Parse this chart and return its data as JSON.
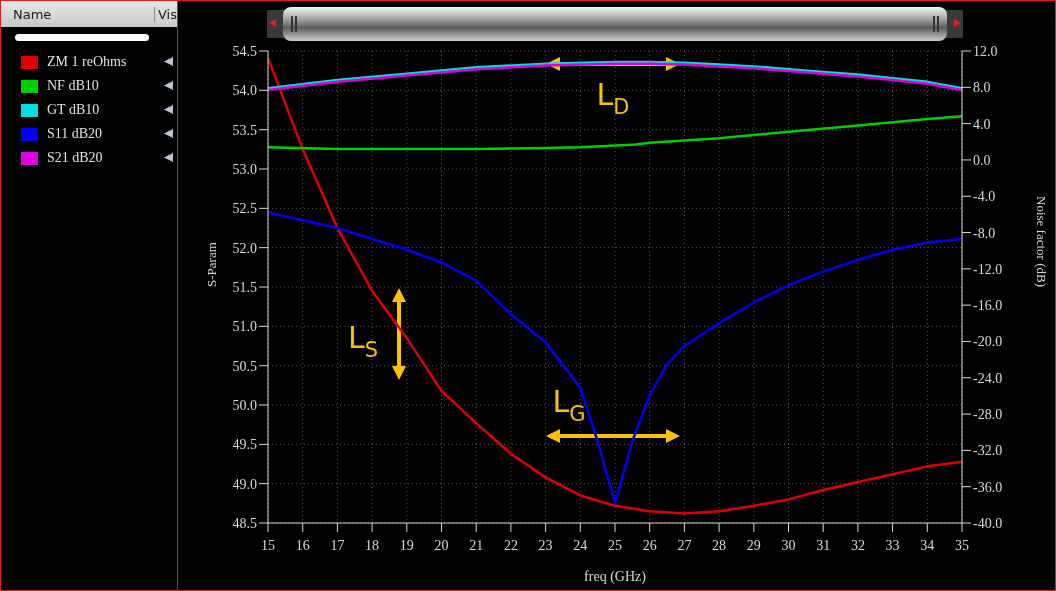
{
  "chart_data": {
    "type": "line",
    "xlabel": "freq (GHz)",
    "ylabel": "S-Param",
    "y2label": "Noise factor (dB)",
    "legend_title": "Name",
    "legend": "left",
    "grid": true,
    "marker": "none",
    "line_style": "solid",
    "xlim": [
      15,
      35
    ],
    "xticks": [
      15,
      16,
      17,
      18,
      19,
      20,
      21,
      22,
      23,
      24,
      25,
      26,
      27,
      28,
      29,
      30,
      31,
      32,
      33,
      34,
      35
    ],
    "ylim": [
      48.5,
      54.5
    ],
    "yticks": [
      48.5,
      {
        "value": 49,
        "label": "49.0"
      },
      49.5,
      {
        "value": 50,
        "label": "50.0"
      },
      50.5,
      {
        "value": 51,
        "label": "51.0"
      },
      51.5,
      {
        "value": 52,
        "label": "52.0"
      },
      52.5,
      {
        "value": 53,
        "label": "53.0"
      },
      53.5,
      {
        "value": 54,
        "label": "54.0"
      },
      54.5
    ],
    "y2lim": [
      -40,
      12
    ],
    "y2ticks": [
      {
        "value": -40,
        "label": "-40.0"
      },
      {
        "value": -36,
        "label": "-36.0"
      },
      {
        "value": -32,
        "label": "-32.0"
      },
      {
        "value": -28,
        "label": "-28.0"
      },
      {
        "value": -24,
        "label": "-24.0"
      },
      {
        "value": -20,
        "label": "-20.0"
      },
      {
        "value": -16,
        "label": "-16.0"
      },
      {
        "value": -12,
        "label": "-12.0"
      },
      {
        "value": -8,
        "label": "-8.0"
      },
      {
        "value": -4,
        "label": "-4.0"
      },
      {
        "value": 0,
        "label": "0.0"
      },
      {
        "value": 4,
        "label": "4.0"
      },
      {
        "value": 8,
        "label": "8.0"
      },
      {
        "value": 12,
        "label": "12.0"
      }
    ],
    "series": [
      {
        "name": "ZM 1 reOhms",
        "color": "#e00000",
        "x": [
          15,
          16,
          17,
          18,
          19,
          20,
          21,
          22,
          23,
          24,
          25,
          26,
          27,
          28,
          29,
          30,
          31,
          32,
          33,
          34,
          35
        ],
        "values": [
          54.41,
          53.25,
          52.25,
          51.45,
          50.85,
          50.18,
          49.77,
          49.38,
          49.08,
          48.85,
          48.72,
          48.65,
          48.62,
          48.65,
          48.72,
          48.8,
          48.92,
          49.02,
          49.12,
          49.22,
          49.28
        ]
      },
      {
        "name": "NF dB10",
        "color": "#00d000",
        "axis": "y2",
        "x": [
          15,
          17,
          21,
          23,
          24,
          25.6,
          26,
          28,
          30,
          32,
          34,
          35
        ],
        "values": [
          1.4,
          1.2,
          1.2,
          1.3,
          1.4,
          1.7,
          1.9,
          2.4,
          3.1,
          3.8,
          4.5,
          4.8
        ]
      },
      {
        "name": "GT dB10",
        "color": "#00e0e0",
        "axis": "y2",
        "x": [
          15,
          17,
          19,
          21,
          23,
          25,
          26,
          27,
          28,
          29,
          30,
          31,
          32,
          33,
          34,
          35
        ],
        "values": [
          7.9,
          8.8,
          9.5,
          10.2,
          10.6,
          10.8,
          10.8,
          10.7,
          10.5,
          10.3,
          10.0,
          9.7,
          9.4,
          9.0,
          8.6,
          7.9
        ]
      },
      {
        "name": "S11 dB20",
        "color": "#0000f0",
        "axis": "y2",
        "x": [
          15,
          17,
          19,
          20,
          21,
          22,
          23,
          24,
          24.5,
          25,
          25.5,
          26,
          26.5,
          27,
          28,
          29,
          30,
          31,
          32,
          33,
          34,
          35
        ],
        "values": [
          -5.8,
          -7.5,
          -9.9,
          -11.3,
          -13.3,
          -17.0,
          -20.1,
          -25.1,
          -31.0,
          -37.8,
          -31.0,
          -25.9,
          -22.5,
          -20.5,
          -18.0,
          -15.7,
          -13.8,
          -12.3,
          -11.0,
          -9.9,
          -9.1,
          -8.7
        ]
      },
      {
        "name": "S21 dB20",
        "color": "#e000e0",
        "axis": "y2",
        "x": [
          15,
          17,
          19,
          21,
          23,
          25,
          26,
          27,
          28,
          29,
          30,
          31,
          32,
          33,
          34,
          35
        ],
        "values": [
          7.7,
          8.6,
          9.3,
          10.0,
          10.4,
          10.6,
          10.6,
          10.5,
          10.3,
          10.1,
          9.8,
          9.5,
          9.2,
          8.8,
          8.4,
          7.7
        ]
      }
    ],
    "annotations": [
      "Vis",
      "L$_{D}$",
      "L$_{S}$",
      "L$_{G}$"
    ]
  }
}
